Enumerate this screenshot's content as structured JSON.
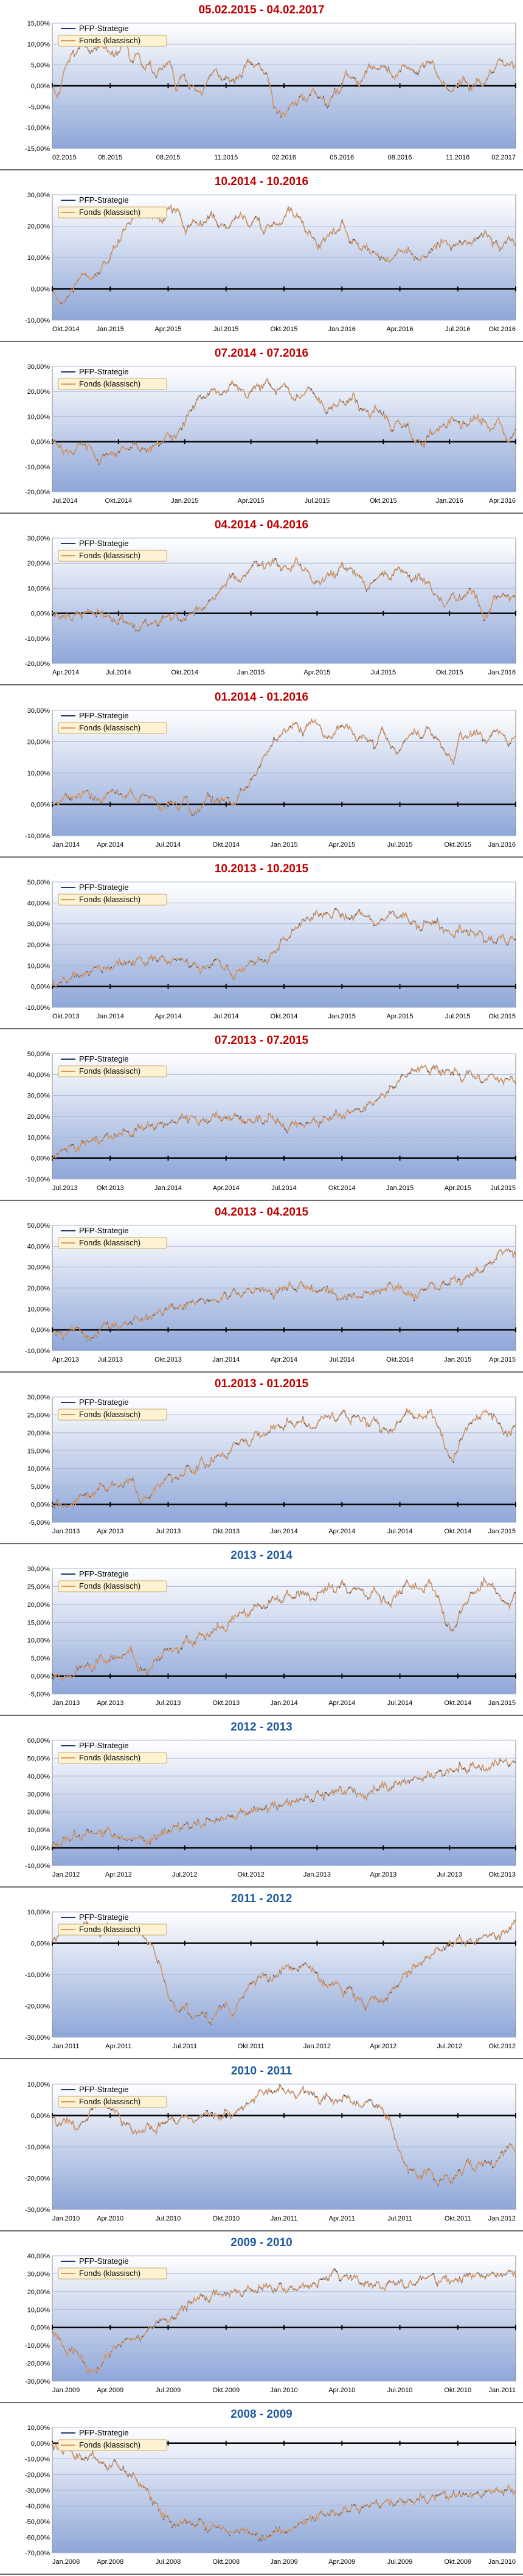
{
  "colors": {
    "title_red": "#c00000",
    "title_blue": "#1f5a9e",
    "line_pfp": "#1f3a6a",
    "line_fonds": "#d99a66",
    "plot_top": "#ffffff",
    "plot_bottom": "#8ea6d8"
  },
  "legend": {
    "pfp": "PFP-Strategie",
    "fonds": "Fonds (klassisch)"
  },
  "chart_data": [
    {
      "type": "line",
      "title": "05.02.2015 - 04.02.2017",
      "title_color": "red",
      "y_ticks": [
        "15,00%",
        "10,00%",
        "5,00%",
        "0,00%",
        "-5,00%",
        "-10,00%",
        "-15,00%"
      ],
      "ylim": [
        -15,
        15
      ],
      "x_ticks": [
        "02.2015",
        "05.2015",
        "08.2015",
        "11.2015",
        "02.2016",
        "05.2016",
        "08.2016",
        "11.2016",
        "02.2017"
      ],
      "series_shape": [
        0,
        -3,
        5,
        7,
        9,
        10,
        8,
        10,
        9,
        8,
        7,
        11,
        6,
        8,
        4,
        5,
        2,
        5,
        6,
        -1,
        3,
        0,
        -1,
        -2,
        3,
        4,
        2,
        2,
        1,
        3,
        6,
        5,
        4,
        2,
        -5,
        -7,
        -6,
        -4,
        -3,
        -3,
        -1,
        -2,
        -5,
        -2,
        -1,
        3,
        2,
        0,
        3,
        5,
        4,
        5,
        2,
        3,
        5,
        4,
        3,
        5,
        6,
        3,
        0,
        -1,
        0,
        2,
        -1,
        1,
        0,
        3,
        5,
        6,
        5,
        5
      ]
    },
    {
      "type": "line",
      "title": "10.2014 - 10.2016",
      "title_color": "red",
      "y_ticks": [
        "30,00%",
        "20,00%",
        "10,00%",
        "0,00%",
        "-10,00%"
      ],
      "ylim": [
        -10,
        30
      ],
      "x_ticks": [
        "Okt.2014",
        "Jan.2015",
        "Apr.2015",
        "Jul.2015",
        "Okt.2015",
        "Jan.2016",
        "Apr.2016",
        "Jul.2016",
        "Okt.2016"
      ],
      "series_shape": [
        0,
        -5,
        -3,
        2,
        5,
        3,
        6,
        9,
        13,
        18,
        22,
        25,
        23,
        24,
        21,
        26,
        25,
        18,
        22,
        20,
        24,
        21,
        19,
        22,
        24,
        20,
        23,
        18,
        21,
        20,
        25,
        24,
        20,
        17,
        13,
        17,
        18,
        21,
        15,
        14,
        13,
        11,
        10,
        8,
        12,
        13,
        10,
        9,
        12,
        14,
        15,
        13,
        15,
        14,
        16,
        18,
        15,
        13,
        16,
        15
      ]
    },
    {
      "type": "line",
      "title": "07.2014 - 07.2016",
      "title_color": "red",
      "y_ticks": [
        "30,00%",
        "20,00%",
        "10,00%",
        "0,00%",
        "-10,00%",
        "-20,00%"
      ],
      "ylim": [
        -20,
        30
      ],
      "x_ticks": [
        "Jul.2014",
        "Okt.2014",
        "Jan.2015",
        "Apr.2015",
        "Jul.2015",
        "Okt.2015",
        "Jan.2016",
        "Apr.2016"
      ],
      "series_shape": [
        0,
        -2,
        -5,
        -3,
        -1,
        -3,
        -9,
        -4,
        -6,
        -2,
        -3,
        -1,
        -4,
        -2,
        0,
        3,
        2,
        7,
        13,
        17,
        19,
        21,
        18,
        23,
        22,
        18,
        21,
        22,
        24,
        19,
        23,
        18,
        17,
        21,
        19,
        14,
        12,
        16,
        15,
        18,
        13,
        11,
        13,
        10,
        5,
        8,
        6,
        0,
        -1,
        3,
        5,
        7,
        9,
        6,
        8,
        10,
        7,
        5,
        9,
        -2,
        5
      ]
    },
    {
      "type": "line",
      "title": "04.2014 - 04.2016",
      "title_color": "red",
      "y_ticks": [
        "30,00%",
        "20,00%",
        "10,00%",
        "0,00%",
        "-10,00%",
        "-20,00%"
      ],
      "ylim": [
        -20,
        30
      ],
      "x_ticks": [
        "Apr.2014",
        "Jul.2014",
        "Okt.2014",
        "Jan.2015",
        "Apr.2015",
        "Jul.2015",
        "Okt.2015",
        "Jan.2016"
      ],
      "series_shape": [
        0,
        -1,
        -2,
        -1,
        0,
        1,
        0,
        -1,
        -3,
        -2,
        -4,
        -7,
        -3,
        -5,
        -2,
        -1,
        -2,
        -3,
        1,
        2,
        5,
        8,
        12,
        15,
        13,
        17,
        20,
        18,
        21,
        19,
        17,
        21,
        18,
        14,
        12,
        15,
        16,
        19,
        17,
        15,
        10,
        13,
        16,
        14,
        18,
        16,
        13,
        15,
        11,
        7,
        3,
        8,
        5,
        9,
        7,
        -3,
        4,
        8,
        6,
        7
      ]
    },
    {
      "type": "line",
      "title": "01.2014 - 01.2016",
      "title_color": "red",
      "y_ticks": [
        "30,00%",
        "20,00%",
        "10,00%",
        "0,00%",
        "-10,00%"
      ],
      "ylim": [
        -10,
        30
      ],
      "x_ticks": [
        "Jan.2014",
        "Apr.2014",
        "Jul.2014",
        "Okt.2014",
        "Jan.2015",
        "Apr.2015",
        "Jul.2015",
        "Okt.2015",
        "Jan.2016"
      ],
      "series_shape": [
        0,
        1,
        3,
        2,
        4,
        3,
        1,
        3,
        5,
        2,
        4,
        1,
        3,
        2,
        -2,
        1,
        -1,
        2,
        -4,
        0,
        3,
        1,
        2,
        0,
        4,
        6,
        10,
        15,
        19,
        22,
        24,
        26,
        23,
        27,
        25,
        21,
        23,
        26,
        24,
        20,
        22,
        18,
        24,
        19,
        16,
        21,
        23,
        22,
        24,
        21,
        17,
        14,
        22,
        21,
        24,
        20,
        23,
        24,
        20,
        21
      ]
    },
    {
      "type": "line",
      "title": "10.2013 - 10.2015",
      "title_color": "red",
      "y_ticks": [
        "50,00%",
        "40,00%",
        "30,00%",
        "20,00%",
        "10,00%",
        "0,00%",
        "-10,00%"
      ],
      "ylim": [
        -10,
        50
      ],
      "x_ticks": [
        "Okt.2013",
        "Jan.2014",
        "Apr.2014",
        "Jul.2014",
        "Okt.2014",
        "Jan.2015",
        "Apr.2015",
        "Jul.2015",
        "Okt.2015"
      ],
      "series_shape": [
        0,
        2,
        4,
        6,
        5,
        7,
        9,
        8,
        10,
        12,
        11,
        13,
        12,
        14,
        13,
        11,
        13,
        12,
        10,
        8,
        10,
        12,
        9,
        5,
        8,
        11,
        13,
        12,
        15,
        20,
        24,
        28,
        31,
        33,
        35,
        33,
        36,
        34,
        32,
        35,
        33,
        30,
        31,
        35,
        33,
        34,
        29,
        28,
        32,
        30,
        27,
        24,
        28,
        25,
        26,
        23,
        22,
        24,
        22,
        23
      ]
    },
    {
      "type": "line",
      "title": "07.2013 - 07.2015",
      "title_color": "red",
      "y_ticks": [
        "50,00%",
        "40,00%",
        "30,00%",
        "20,00%",
        "10,00%",
        "0,00%",
        "-10,00%"
      ],
      "ylim": [
        -10,
        50
      ],
      "x_ticks": [
        "Jul.2013",
        "Okt.2013",
        "Jan.2014",
        "Apr.2014",
        "Jul.2014",
        "Okt.2014",
        "Jan.2015",
        "Apr.2015",
        "Jul.2015"
      ],
      "series_shape": [
        0,
        3,
        5,
        4,
        7,
        9,
        8,
        11,
        10,
        13,
        12,
        14,
        16,
        15,
        17,
        16,
        18,
        20,
        19,
        17,
        19,
        21,
        18,
        20,
        19,
        17,
        19,
        18,
        20,
        16,
        14,
        17,
        15,
        18,
        17,
        19,
        21,
        20,
        23,
        22,
        25,
        27,
        30,
        33,
        36,
        39,
        42,
        44,
        41,
        43,
        40,
        42,
        38,
        41,
        39,
        37,
        40,
        36,
        38,
        37
      ]
    },
    {
      "type": "line",
      "title": "04.2013 - 04.2015",
      "title_color": "red",
      "y_ticks": [
        "50,00%",
        "40,00%",
        "30,00%",
        "20,00%",
        "10,00%",
        "0,00%",
        "-10,00%"
      ],
      "ylim": [
        -10,
        50
      ],
      "x_ticks": [
        "Apr.2013",
        "Jul.2013",
        "Okt.2013",
        "Jan.2014",
        "Apr.2014",
        "Jul.2014",
        "Okt.2014",
        "Jan.2015",
        "Apr.2015"
      ],
      "series_shape": [
        0,
        -3,
        -1,
        2,
        -2,
        -5,
        0,
        3,
        1,
        2,
        4,
        6,
        5,
        8,
        9,
        11,
        10,
        12,
        14,
        13,
        15,
        14,
        16,
        18,
        17,
        19,
        18,
        20,
        17,
        19,
        21,
        20,
        22,
        19,
        18,
        20,
        16,
        14,
        17,
        15,
        18,
        17,
        19,
        21,
        20,
        18,
        15,
        19,
        21,
        20,
        22,
        24,
        23,
        26,
        28,
        30,
        33,
        37,
        38,
        36
      ]
    },
    {
      "type": "line",
      "title": "01.2013 - 01.2015",
      "title_color": "red",
      "y_ticks": [
        "30,00%",
        "25,00%",
        "20,00%",
        "15,00%",
        "10,00%",
        "5,00%",
        "0,00%",
        "-5,00%"
      ],
      "ylim": [
        -5,
        30
      ],
      "x_ticks": [
        "Jan.2013",
        "Apr.2013",
        "Jul.2013",
        "Okt.2013",
        "Jan.2014",
        "Apr.2014",
        "Jul.2014",
        "Okt.2014",
        "Jan.2015"
      ],
      "series_shape": [
        0,
        0,
        -1,
        1,
        3,
        2,
        5,
        4,
        6,
        5,
        8,
        2,
        1,
        4,
        6,
        8,
        7,
        10,
        9,
        12,
        11,
        14,
        13,
        16,
        18,
        17,
        20,
        19,
        22,
        21,
        23,
        22,
        24,
        21,
        23,
        25,
        24,
        26,
        23,
        25,
        22,
        24,
        21,
        20,
        23,
        26,
        25,
        24,
        26,
        23,
        16,
        12,
        18,
        22,
        24,
        26,
        25,
        22,
        19,
        23
      ]
    },
    {
      "type": "line",
      "title": "2013 - 2014",
      "title_color": "blue",
      "y_ticks": [
        "30,00%",
        "25,00%",
        "20,00%",
        "15,00%",
        "10,00%",
        "5,00%",
        "0,00%",
        "-5,00%"
      ],
      "ylim": [
        -5,
        30
      ],
      "x_ticks": [
        "Jan.2013",
        "Apr.2013",
        "Jul.2013",
        "Okt.2013",
        "Jan.2014",
        "Apr.2014",
        "Jul.2014",
        "Okt.2014",
        "Jan.2015"
      ],
      "series_shape": [
        0,
        0,
        -1,
        1,
        3,
        2,
        5,
        4,
        6,
        5,
        8,
        2,
        1,
        4,
        6,
        8,
        7,
        10,
        9,
        12,
        11,
        14,
        13,
        16,
        18,
        17,
        20,
        19,
        22,
        21,
        23,
        22,
        24,
        21,
        23,
        25,
        24,
        26,
        23,
        25,
        22,
        24,
        21,
        20,
        23,
        26,
        25,
        24,
        26,
        23,
        16,
        12,
        18,
        22,
        24,
        26,
        25,
        22,
        19,
        23
      ]
    },
    {
      "type": "line",
      "title": "2012 - 2013",
      "title_color": "blue",
      "y_ticks": [
        "60,00%",
        "50,00%",
        "40,00%",
        "30,00%",
        "20,00%",
        "10,00%",
        "0,00%",
        "-10,00%"
      ],
      "ylim": [
        -10,
        60
      ],
      "x_ticks": [
        "Jan.2012",
        "Apr.2012",
        "Jul.2012",
        "Okt.2012",
        "Jan.2013",
        "Apr.2013",
        "Jul.2013",
        "Okt.2013"
      ],
      "series_shape": [
        0,
        3,
        5,
        7,
        6,
        9,
        8,
        10,
        7,
        5,
        4,
        6,
        3,
        5,
        8,
        10,
        12,
        11,
        14,
        13,
        16,
        15,
        18,
        17,
        20,
        19,
        22,
        21,
        24,
        23,
        26,
        25,
        28,
        27,
        30,
        29,
        32,
        31,
        34,
        30,
        28,
        32,
        35,
        33,
        37,
        36,
        39,
        38,
        41,
        40,
        43,
        42,
        45,
        44,
        47,
        43,
        46,
        49,
        48,
        47
      ]
    },
    {
      "type": "line",
      "title": "2011 - 2012",
      "title_color": "blue",
      "y_ticks": [
        "10,00%",
        "0,00%",
        "-10,00%",
        "-20,00%",
        "-30,00%"
      ],
      "ylim": [
        -30,
        10
      ],
      "x_ticks": [
        "Jan.2011",
        "Apr.2011",
        "Jul.2011",
        "Okt.2011",
        "Jan.2012",
        "Apr.2012",
        "Jul.2012",
        "Okt.2012"
      ],
      "series_shape": [
        0,
        3,
        5,
        4,
        6,
        5,
        3,
        5,
        4,
        6,
        5,
        3,
        1,
        -2,
        -10,
        -18,
        -22,
        -20,
        -24,
        -21,
        -25,
        -22,
        -19,
        -23,
        -18,
        -14,
        -12,
        -10,
        -12,
        -9,
        -7,
        -9,
        -6,
        -8,
        -11,
        -14,
        -12,
        -16,
        -15,
        -18,
        -20,
        -17,
        -19,
        -16,
        -13,
        -10,
        -8,
        -6,
        -4,
        -2,
        -1,
        0,
        1,
        0,
        1,
        2,
        3,
        2,
        5,
        6
      ]
    },
    {
      "type": "line",
      "title": "2010 - 2011",
      "title_color": "blue",
      "y_ticks": [
        "10,00%",
        "0,00%",
        "-10,00%",
        "-20,00%",
        "-30,00%"
      ],
      "ylim": [
        -30,
        10
      ],
      "x_ticks": [
        "Jan.2010",
        "Apr.2010",
        "Jul.2010",
        "Okt.2010",
        "Jan.2011",
        "Apr.2011",
        "Jul.2011",
        "Okt.2011",
        "Jan.2012"
      ],
      "series_shape": [
        0,
        -3,
        -1,
        -4,
        -2,
        2,
        4,
        3,
        1,
        -2,
        -4,
        -6,
        -3,
        -5,
        -3,
        -1,
        -2,
        0,
        -2,
        0,
        1,
        -1,
        1,
        0,
        2,
        4,
        6,
        8,
        7,
        9,
        8,
        6,
        8,
        7,
        5,
        6,
        4,
        6,
        5,
        3,
        5,
        4,
        2,
        -2,
        -10,
        -16,
        -18,
        -20,
        -17,
        -22,
        -19,
        -21,
        -18,
        -15,
        -17,
        -14,
        -16,
        -13,
        -10,
        -11
      ]
    },
    {
      "type": "line",
      "title": "2009 - 2010",
      "title_color": "blue",
      "y_ticks": [
        "40,00%",
        "30,00%",
        "20,00%",
        "10,00%",
        "0,00%",
        "-10,00%",
        "-20,00%",
        "-30,00%"
      ],
      "ylim": [
        -30,
        40
      ],
      "x_ticks": [
        "Jan.2009",
        "Apr.2009",
        "Jul.2009",
        "Okt.2009",
        "Jan.2010",
        "Apr.2010",
        "Jul.2010",
        "Okt.2010",
        "Jan.2011"
      ],
      "series_shape": [
        0,
        -8,
        -15,
        -12,
        -20,
        -26,
        -22,
        -15,
        -12,
        -8,
        -5,
        -7,
        -2,
        2,
        5,
        3,
        8,
        12,
        15,
        18,
        16,
        20,
        17,
        21,
        19,
        22,
        20,
        24,
        21,
        23,
        20,
        22,
        24,
        22,
        26,
        28,
        30,
        27,
        29,
        26,
        23,
        25,
        22,
        24,
        26,
        23,
        25,
        27,
        29,
        26,
        28,
        25,
        27,
        29,
        30,
        28,
        30,
        29,
        31,
        30
      ]
    },
    {
      "type": "line",
      "title": "2008 - 2009",
      "title_color": "blue",
      "y_ticks": [
        "10,00%",
        "0,00%",
        "-10,00%",
        "-20,00%",
        "-30,00%",
        "-40,00%",
        "-50,00%",
        "-60,00%",
        "-70,00%"
      ],
      "ylim": [
        -70,
        10
      ],
      "x_ticks": [
        "Jan.2008",
        "Apr.2008",
        "Jul.2008",
        "Okt.2008",
        "Jan.2009",
        "Apr.2009",
        "Jul.2009",
        "Okt.2009",
        "Jan.2010"
      ],
      "series_shape": [
        0,
        -5,
        -3,
        -8,
        -10,
        -7,
        -12,
        -15,
        -13,
        -18,
        -20,
        -25,
        -30,
        -38,
        -45,
        -50,
        -52,
        -48,
        -53,
        -50,
        -55,
        -52,
        -56,
        -58,
        -55,
        -57,
        -59,
        -61,
        -58,
        -55,
        -57,
        -52,
        -50,
        -48,
        -46,
        -44,
        -46,
        -43,
        -41,
        -42,
        -40,
        -38,
        -39,
        -37,
        -38,
        -36,
        -37,
        -35,
        -36,
        -34,
        -33,
        -34,
        -32,
        -33,
        -31,
        -32,
        -30,
        -31,
        -29,
        -30
      ]
    }
  ]
}
